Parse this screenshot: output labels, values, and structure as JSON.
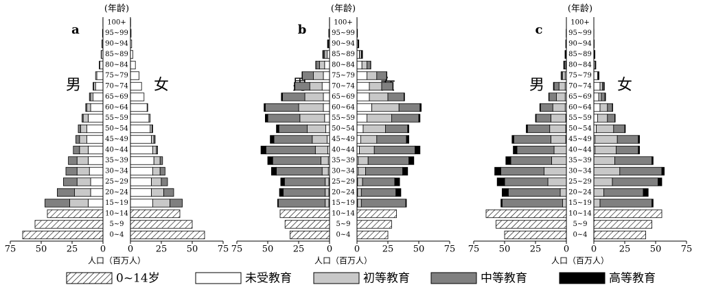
{
  "chart_data": {
    "type": "pyramid",
    "y_label": "(年龄)",
    "x_label": "人口（百万人）",
    "male_label": "男",
    "female_label": "女",
    "categories": [
      "0~4",
      "5~9",
      "10~14",
      "15~19",
      "20~24",
      "25~29",
      "30~34",
      "35~39",
      "40~44",
      "45~49",
      "50~54",
      "55~59",
      "60~64",
      "65~69",
      "70~74",
      "75~79",
      "80~84",
      "85~89",
      "90~94",
      "95~99",
      "100+"
    ],
    "xlim": [
      0,
      75
    ],
    "xticks": [
      0,
      25,
      50,
      75
    ],
    "series": [
      {
        "name": "0~14岁",
        "color": "#ffffff",
        "pattern": "hatch"
      },
      {
        "name": "未受教育",
        "color": "#ffffff"
      },
      {
        "name": "初等教育",
        "color": "#c8c8c8"
      },
      {
        "name": "中等教育",
        "color": "#808080"
      },
      {
        "name": "高等教育",
        "color": "#000000"
      }
    ],
    "panels": [
      {
        "label": "a",
        "male": [
          [
            65,
            0,
            0,
            0,
            0
          ],
          [
            55,
            0,
            0,
            0,
            0
          ],
          [
            45,
            0,
            0,
            0,
            0
          ],
          [
            0,
            12,
            15,
            20,
            0
          ],
          [
            0,
            10,
            13,
            14,
            0
          ],
          [
            0,
            10,
            11,
            11,
            0
          ],
          [
            0,
            11,
            10,
            9,
            0
          ],
          [
            0,
            12,
            9,
            7,
            0
          ],
          [
            0,
            12,
            7,
            5,
            0
          ],
          [
            0,
            13,
            6,
            3,
            0
          ],
          [
            0,
            13,
            5,
            2,
            0
          ],
          [
            0,
            12,
            4,
            1,
            0
          ],
          [
            0,
            10,
            3,
            1,
            0
          ],
          [
            0,
            8,
            2,
            1,
            0
          ],
          [
            0,
            6,
            1.5,
            0.5,
            0
          ],
          [
            0,
            5,
            1,
            0,
            0
          ],
          [
            0,
            2.5,
            0.5,
            0,
            0
          ],
          [
            0,
            1.3,
            0.2,
            0,
            0
          ],
          [
            0,
            0.7,
            0.1,
            0,
            0
          ],
          [
            0,
            0.4,
            0,
            0,
            0
          ],
          [
            0,
            0.1,
            0,
            0,
            0
          ]
        ],
        "female": [
          [
            60,
            0,
            0,
            0,
            0
          ],
          [
            50,
            0,
            0,
            0,
            0
          ],
          [
            40,
            0,
            0,
            0,
            0
          ],
          [
            0,
            18,
            14,
            10,
            0
          ],
          [
            0,
            17,
            10,
            8,
            0
          ],
          [
            0,
            17,
            8,
            5,
            0
          ],
          [
            0,
            18,
            6,
            4,
            0
          ],
          [
            0,
            19,
            5,
            2,
            0
          ],
          [
            0,
            18,
            3,
            1,
            0
          ],
          [
            0,
            17,
            2,
            1,
            0
          ],
          [
            0,
            16,
            1.5,
            0.5,
            0
          ],
          [
            0,
            15,
            1,
            0,
            0
          ],
          [
            0,
            13.5,
            0.5,
            0,
            0
          ],
          [
            0,
            11,
            0,
            0,
            0
          ],
          [
            0,
            9,
            0,
            0,
            0
          ],
          [
            0,
            7,
            0,
            0,
            0
          ],
          [
            0,
            4,
            0,
            0,
            0
          ],
          [
            0,
            2,
            0,
            0,
            0
          ],
          [
            0,
            1,
            0,
            0,
            0
          ],
          [
            0,
            0.5,
            0,
            0,
            0
          ],
          [
            0,
            0.2,
            0,
            0,
            0
          ]
        ]
      },
      {
        "label": "b",
        "male": [
          [
            32,
            0,
            0,
            0,
            0
          ],
          [
            36,
            0,
            0,
            0,
            0
          ],
          [
            40,
            0,
            0,
            0,
            0
          ],
          [
            0,
            0.5,
            3,
            38,
            0.5
          ],
          [
            0,
            0.5,
            3,
            34,
            3
          ],
          [
            0,
            0.5,
            3,
            33,
            3
          ],
          [
            0,
            1,
            5,
            37,
            4
          ],
          [
            0,
            1,
            6,
            39,
            4
          ],
          [
            0,
            1.5,
            10,
            40,
            4
          ],
          [
            0,
            2,
            12,
            31,
            3
          ],
          [
            0,
            3,
            15,
            23,
            2
          ],
          [
            0,
            4,
            20,
            26,
            2
          ],
          [
            0,
            5,
            20,
            27,
            1
          ],
          [
            0,
            5,
            15,
            18,
            1
          ],
          [
            0,
            6,
            10,
            12,
            0.5
          ],
          [
            0,
            5,
            8,
            9,
            0.3
          ],
          [
            0,
            4,
            4,
            3,
            0.2
          ],
          [
            0,
            2,
            2,
            1,
            0.5
          ],
          [
            0,
            0.7,
            0.5,
            0.3,
            0.1
          ],
          [
            0,
            0.3,
            0.2,
            0.1,
            0
          ],
          [
            0,
            0.1,
            0,
            0,
            0
          ]
        ],
        "female": [
          [
            25,
            0,
            0,
            0,
            0
          ],
          [
            28,
            0,
            0,
            0,
            0
          ],
          [
            32,
            0,
            0,
            0,
            0
          ],
          [
            0,
            0.5,
            3,
            36,
            0.5
          ],
          [
            0,
            0.5,
            3,
            28,
            4
          ],
          [
            0,
            0.5,
            4,
            26,
            4
          ],
          [
            0,
            1,
            6,
            30,
            4
          ],
          [
            0,
            1,
            8,
            33,
            4
          ],
          [
            0,
            2,
            12,
            33,
            4
          ],
          [
            0,
            3,
            13,
            24,
            2
          ],
          [
            0,
            5,
            18,
            18,
            1
          ],
          [
            0,
            8,
            20,
            22,
            1
          ],
          [
            0,
            12,
            22,
            17,
            1
          ],
          [
            0,
            10,
            15,
            13,
            0.5
          ],
          [
            0,
            10,
            10,
            9,
            0.3
          ],
          [
            0,
            8,
            8,
            8,
            0.2
          ],
          [
            0,
            4,
            4,
            3,
            0.2
          ],
          [
            0,
            2,
            1.5,
            0.5,
            0.5
          ],
          [
            0,
            0.8,
            0.4,
            0.2,
            0.1
          ],
          [
            0,
            0.3,
            0.1,
            0,
            0
          ],
          [
            0,
            0.1,
            0,
            0,
            0
          ]
        ]
      },
      {
        "label": "c",
        "male": [
          [
            50,
            0,
            0,
            0,
            0
          ],
          [
            57,
            0,
            0,
            0,
            0
          ],
          [
            65,
            0,
            0,
            0,
            0
          ],
          [
            0,
            0,
            3,
            49,
            1
          ],
          [
            0,
            0,
            5,
            42,
            5
          ],
          [
            0,
            0,
            15,
            35,
            6
          ],
          [
            0,
            0,
            18,
            35,
            5
          ],
          [
            0,
            0,
            12,
            33,
            4
          ],
          [
            0,
            0,
            10,
            30,
            3
          ],
          [
            0,
            0.5,
            12,
            30,
            1.5
          ],
          [
            0,
            0.5,
            13,
            18,
            1
          ],
          [
            0,
            0.5,
            12,
            12,
            0.5
          ],
          [
            0,
            1,
            10,
            10,
            0.5
          ],
          [
            0,
            1,
            7,
            6,
            0.3
          ],
          [
            0,
            1,
            5,
            4,
            0.5
          ],
          [
            0,
            1,
            2,
            1,
            0.3
          ],
          [
            0,
            0.5,
            1,
            0.5,
            0.2
          ],
          [
            0,
            0.3,
            0.5,
            0.2,
            0.1
          ],
          [
            0,
            0.2,
            0.2,
            0.1,
            0
          ],
          [
            0,
            0.1,
            0.1,
            0,
            0
          ],
          [
            0,
            0.05,
            0,
            0,
            0
          ]
        ],
        "female": [
          [
            42,
            0,
            0,
            0,
            0
          ],
          [
            47,
            0,
            0,
            0,
            0
          ],
          [
            55,
            0,
            0,
            0,
            0
          ],
          [
            0,
            0,
            5,
            42,
            1
          ],
          [
            0,
            0,
            8,
            32,
            4
          ],
          [
            0,
            0,
            15,
            37,
            3
          ],
          [
            0,
            0,
            21,
            34,
            2
          ],
          [
            0,
            0,
            17,
            30,
            1
          ],
          [
            0,
            1,
            17,
            18,
            1
          ],
          [
            0,
            1,
            18,
            17,
            1
          ],
          [
            0,
            2,
            14,
            9,
            0.5
          ],
          [
            0,
            3,
            8,
            6,
            0.3
          ],
          [
            0,
            5,
            6,
            4,
            0.3
          ],
          [
            0,
            4,
            2,
            3,
            0.5
          ],
          [
            0,
            5,
            2,
            1,
            0.5
          ],
          [
            0,
            3,
            0.5,
            0.5,
            0.2
          ],
          [
            0,
            1,
            0.3,
            0.2,
            0.1
          ],
          [
            0,
            0.5,
            0.2,
            0.1,
            0.1
          ],
          [
            0,
            0.2,
            0.1,
            0,
            0
          ],
          [
            0,
            0.1,
            0,
            0,
            0
          ],
          [
            0,
            0.05,
            0,
            0,
            0
          ]
        ]
      }
    ]
  }
}
